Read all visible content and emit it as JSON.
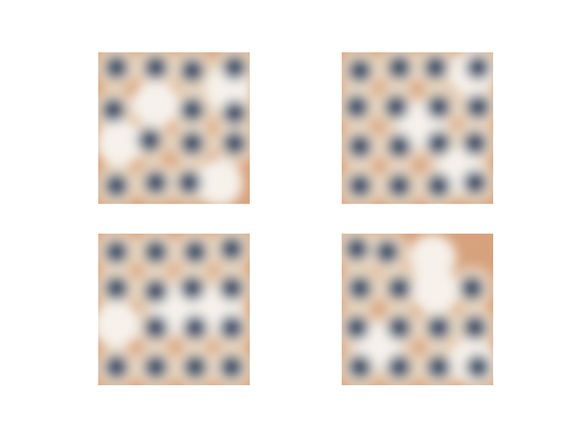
{
  "figure": {
    "description_free": true,
    "grid": {
      "rows": 2,
      "cols": 2
    },
    "palette": {
      "cream": "#f4e9d6",
      "peach": "#d9a079",
      "navy": "#2b3450",
      "steel": "#5d7591",
      "white": "#fbf7f1"
    },
    "images": [
      {
        "id": "sample-1",
        "dark_spots": [
          [
            0.12,
            0.1
          ],
          [
            0.38,
            0.1
          ],
          [
            0.62,
            0.12
          ],
          [
            0.9,
            0.1
          ],
          [
            0.1,
            0.38
          ],
          [
            0.62,
            0.38
          ],
          [
            0.9,
            0.4
          ],
          [
            0.34,
            0.58
          ],
          [
            0.62,
            0.6
          ],
          [
            0.9,
            0.6
          ],
          [
            0.12,
            0.88
          ],
          [
            0.38,
            0.86
          ],
          [
            0.6,
            0.86
          ]
        ],
        "light_spots": [
          [
            0.38,
            0.34
          ],
          [
            0.8,
            0.86
          ],
          [
            0.14,
            0.6
          ],
          [
            0.86,
            0.24
          ]
        ]
      },
      {
        "id": "sample-2",
        "dark_spots": [
          [
            0.12,
            0.12
          ],
          [
            0.38,
            0.1
          ],
          [
            0.62,
            0.1
          ],
          [
            0.9,
            0.1
          ],
          [
            0.1,
            0.36
          ],
          [
            0.36,
            0.36
          ],
          [
            0.64,
            0.36
          ],
          [
            0.9,
            0.36
          ],
          [
            0.12,
            0.62
          ],
          [
            0.38,
            0.62
          ],
          [
            0.64,
            0.6
          ],
          [
            0.88,
            0.6
          ],
          [
            0.12,
            0.88
          ],
          [
            0.38,
            0.88
          ],
          [
            0.64,
            0.88
          ],
          [
            0.88,
            0.86
          ]
        ],
        "light_spots": [
          [
            0.86,
            0.14
          ],
          [
            0.52,
            0.48
          ],
          [
            0.78,
            0.78
          ]
        ]
      },
      {
        "id": "sample-3",
        "dark_spots": [
          [
            0.12,
            0.12
          ],
          [
            0.38,
            0.12
          ],
          [
            0.64,
            0.12
          ],
          [
            0.88,
            0.1
          ],
          [
            0.12,
            0.36
          ],
          [
            0.38,
            0.38
          ],
          [
            0.62,
            0.36
          ],
          [
            0.88,
            0.36
          ],
          [
            0.38,
            0.62
          ],
          [
            0.64,
            0.62
          ],
          [
            0.88,
            0.62
          ],
          [
            0.12,
            0.88
          ],
          [
            0.38,
            0.88
          ],
          [
            0.64,
            0.88
          ],
          [
            0.88,
            0.88
          ]
        ],
        "light_spots": [
          [
            0.12,
            0.6
          ],
          [
            0.5,
            0.5
          ],
          [
            0.8,
            0.5
          ]
        ]
      },
      {
        "id": "sample-4",
        "dark_spots": [
          [
            0.1,
            0.1
          ],
          [
            0.3,
            0.12
          ],
          [
            0.12,
            0.36
          ],
          [
            0.38,
            0.36
          ],
          [
            0.86,
            0.36
          ],
          [
            0.1,
            0.62
          ],
          [
            0.38,
            0.62
          ],
          [
            0.64,
            0.62
          ],
          [
            0.88,
            0.62
          ],
          [
            0.12,
            0.88
          ],
          [
            0.38,
            0.88
          ],
          [
            0.64,
            0.88
          ],
          [
            0.9,
            0.88
          ]
        ],
        "light_spots": [
          [
            0.6,
            0.16
          ],
          [
            0.62,
            0.38
          ],
          [
            0.24,
            0.74
          ],
          [
            0.86,
            0.84
          ]
        ]
      }
    ]
  }
}
